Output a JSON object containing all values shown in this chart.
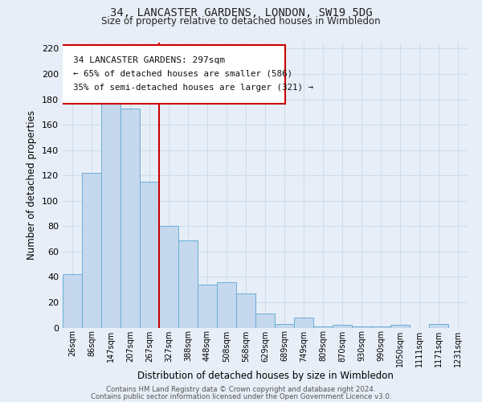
{
  "title": "34, LANCASTER GARDENS, LONDON, SW19 5DG",
  "subtitle": "Size of property relative to detached houses in Wimbledon",
  "xlabel": "Distribution of detached houses by size in Wimbledon",
  "ylabel": "Number of detached properties",
  "bar_labels": [
    "26sqm",
    "86sqm",
    "147sqm",
    "207sqm",
    "267sqm",
    "327sqm",
    "388sqm",
    "448sqm",
    "508sqm",
    "568sqm",
    "629sqm",
    "689sqm",
    "749sqm",
    "809sqm",
    "870sqm",
    "930sqm",
    "990sqm",
    "1050sqm",
    "1111sqm",
    "1171sqm",
    "1231sqm"
  ],
  "bar_values": [
    42,
    122,
    183,
    173,
    115,
    80,
    69,
    34,
    36,
    27,
    11,
    3,
    8,
    1,
    2,
    1,
    1,
    2,
    0,
    3,
    0
  ],
  "bar_color": "#c5d8ed",
  "bar_edgecolor": "#6aaed6",
  "grid_color": "#ccddf0",
  "vline_x": 4.5,
  "vline_color": "#cc0000",
  "annotation_line1": "34 LANCASTER GARDENS: 297sqm",
  "annotation_line2": "← 65% of detached houses are smaller (586)",
  "annotation_line3": "35% of semi-detached houses are larger (321) →",
  "annotation_box_color": "#cc0000",
  "ylim": [
    0,
    225
  ],
  "yticks": [
    0,
    20,
    40,
    60,
    80,
    100,
    120,
    140,
    160,
    180,
    200,
    220
  ],
  "footer1": "Contains HM Land Registry data © Crown copyright and database right 2024.",
  "footer2": "Contains public sector information licensed under the Open Government Licence v3.0.",
  "bg_color": "#e8eef7"
}
